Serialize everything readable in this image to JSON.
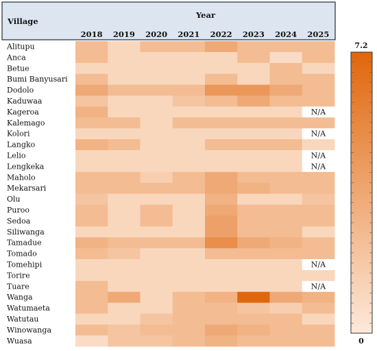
{
  "chart_data": {
    "type": "heatmap",
    "row_header": "Village",
    "column_header": "Year",
    "columns": [
      "2018",
      "2019",
      "2020",
      "2021",
      "2022",
      "2023",
      "2024",
      "2025"
    ],
    "rows": [
      "Alitupu",
      "Anca",
      "Betue",
      "Bumi Banyusari",
      "Dodolo",
      "Kaduwaa",
      "Kageroa",
      "Kalemago",
      "Kolori",
      "Langko",
      "Lelio",
      "Lengkeka",
      "Maholo",
      "Mekarsari",
      "Olu",
      "Puroo",
      "Sedoa",
      "Siliwanga",
      "Tamadue",
      "Tomado",
      "Tomehipi",
      "Torire",
      "Tuare",
      "Wanga",
      "Watumaeta",
      "Watutau",
      "Winowanga",
      "Wuasa"
    ],
    "values": [
      [
        2.5,
        1.0,
        2.5,
        2.5,
        3.5,
        2.5,
        2.5,
        2.5
      ],
      [
        2.5,
        1.0,
        1.0,
        1.0,
        1.0,
        2.5,
        0.7,
        2.5
      ],
      [
        1.0,
        1.0,
        1.0,
        1.0,
        1.0,
        1.0,
        2.5,
        1.0
      ],
      [
        2.5,
        1.0,
        1.0,
        1.0,
        2.5,
        1.0,
        2.5,
        2.5
      ],
      [
        3.5,
        2.5,
        2.5,
        2.5,
        4.5,
        4.5,
        3.5,
        2.5
      ],
      [
        2.0,
        1.0,
        1.0,
        2.0,
        2.5,
        3.5,
        2.5,
        2.5
      ],
      [
        3.0,
        1.0,
        1.0,
        1.0,
        1.0,
        1.0,
        1.0,
        null
      ],
      [
        2.5,
        2.5,
        1.0,
        2.5,
        2.5,
        2.5,
        2.5,
        2.5
      ],
      [
        1.0,
        1.0,
        1.0,
        1.0,
        1.0,
        1.0,
        1.0,
        null
      ],
      [
        3.0,
        2.5,
        1.0,
        1.0,
        2.5,
        2.5,
        2.5,
        1.0
      ],
      [
        1.0,
        1.0,
        1.0,
        1.0,
        1.0,
        1.0,
        1.0,
        null
      ],
      [
        1.0,
        1.0,
        1.0,
        1.0,
        1.0,
        1.0,
        1.0,
        null
      ],
      [
        2.5,
        2.5,
        1.5,
        2.5,
        3.5,
        2.5,
        2.5,
        2.5
      ],
      [
        2.5,
        2.5,
        2.5,
        2.5,
        3.5,
        3.0,
        2.5,
        2.5
      ],
      [
        2.0,
        1.0,
        1.0,
        1.0,
        3.0,
        1.0,
        1.0,
        2.0
      ],
      [
        2.5,
        1.0,
        2.5,
        1.0,
        3.5,
        2.5,
        2.5,
        2.5
      ],
      [
        2.5,
        1.0,
        2.5,
        1.0,
        4.0,
        2.5,
        2.5,
        2.5
      ],
      [
        1.0,
        1.0,
        1.0,
        1.0,
        4.0,
        2.5,
        2.5,
        1.0
      ],
      [
        3.0,
        2.5,
        2.5,
        2.5,
        5.0,
        3.5,
        3.0,
        2.5
      ],
      [
        2.5,
        2.0,
        1.0,
        1.0,
        2.5,
        2.5,
        2.5,
        2.5
      ],
      [
        1.0,
        1.0,
        1.0,
        1.0,
        1.0,
        1.0,
        1.0,
        null
      ],
      [
        1.0,
        1.0,
        1.0,
        1.0,
        1.0,
        1.0,
        1.0,
        1.0
      ],
      [
        2.5,
        1.0,
        1.0,
        1.0,
        1.0,
        1.0,
        1.0,
        null
      ],
      [
        2.5,
        3.5,
        1.0,
        2.5,
        3.0,
        7.2,
        3.5,
        3.0
      ],
      [
        2.5,
        1.0,
        1.0,
        2.5,
        2.5,
        2.0,
        1.5,
        2.5
      ],
      [
        1.0,
        1.0,
        2.0,
        2.5,
        2.5,
        2.5,
        2.5,
        1.0
      ],
      [
        2.5,
        2.0,
        2.5,
        2.5,
        3.5,
        3.0,
        2.5,
        2.5
      ],
      [
        0.7,
        2.0,
        2.0,
        2.5,
        3.0,
        2.5,
        2.5,
        2.5
      ]
    ],
    "missing_label": "N/A",
    "colorbar": {
      "max_label": "7.2",
      "min_label": "0",
      "min": 0,
      "max": 7.2
    },
    "color_low": "#fde9da",
    "color_high": "#e0660c",
    "missing_color": "#ffffff"
  }
}
